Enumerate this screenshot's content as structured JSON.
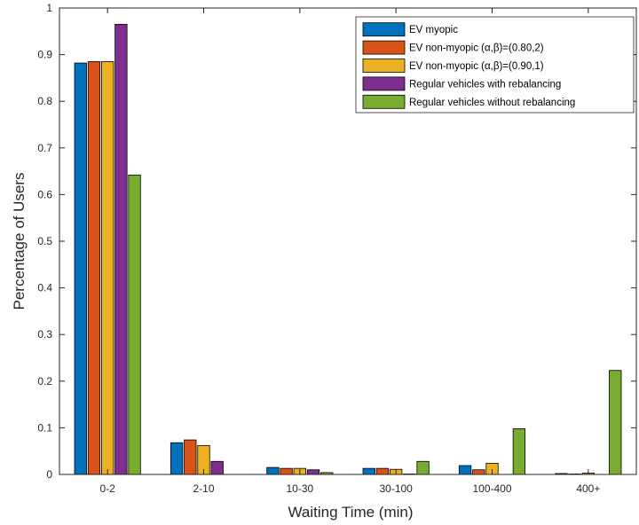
{
  "chart_data": {
    "type": "bar",
    "xlabel": "Waiting Time (min)",
    "ylabel": "Percentage of Users",
    "ylim": [
      0,
      1
    ],
    "yticks": [
      "0",
      "0.1",
      "0.2",
      "0.3",
      "0.4",
      "0.5",
      "0.6",
      "0.7",
      "0.8",
      "0.9",
      "1"
    ],
    "categories": [
      "0-2",
      "2-10",
      "10-30",
      "30-100",
      "100-400",
      "400+"
    ],
    "series": [
      {
        "name": "EV myopic",
        "values": [
          0.882,
          0.068,
          0.015,
          0.013,
          0.019,
          0.002
        ],
        "color": "#0072BD"
      },
      {
        "name": "EV non-myopic (α,β)=(0.80,2)",
        "values": [
          0.885,
          0.074,
          0.013,
          0.013,
          0.01,
          0.001
        ],
        "color": "#D95319"
      },
      {
        "name": "EV non-myopic (α,β)=(0.90,1)",
        "values": [
          0.885,
          0.062,
          0.013,
          0.011,
          0.024,
          0.003
        ],
        "color": "#EDB120"
      },
      {
        "name": "Regular vehicles with rebalancing",
        "values": [
          0.965,
          0.028,
          0.01,
          0.001,
          0.0,
          0.0
        ],
        "color": "#7E2F8E"
      },
      {
        "name": "Regular vehicles without rebalancing",
        "values": [
          0.642,
          0.0,
          0.004,
          0.028,
          0.098,
          0.223
        ],
        "color": "#77AC30"
      }
    ],
    "grid": false,
    "legend_position": "top-right"
  }
}
